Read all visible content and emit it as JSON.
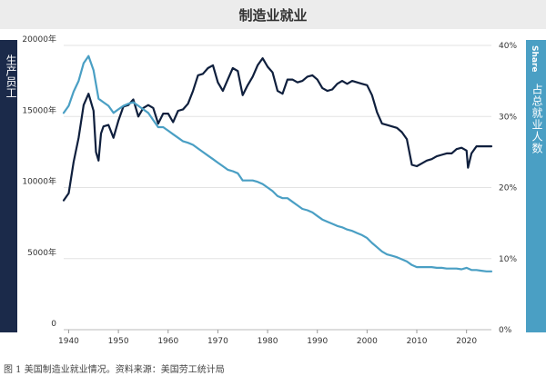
{
  "title": "制造业就业",
  "left_axis_label": "生产员工",
  "right_axis_tag": "Share",
  "right_axis_label": "占总就业人数",
  "caption": "图 1 美国制造业就业情况。资料来源：美国劳工统计局",
  "colors": {
    "employees": "#0f1f3d",
    "share": "#4a9fc4",
    "grid": "#e3e3e3",
    "tick": "#333333"
  },
  "chart_data": {
    "type": "line",
    "x_range": [
      1939,
      2025
    ],
    "x_ticks": [
      1940,
      1950,
      1960,
      1970,
      1980,
      1990,
      2000,
      2010,
      2020
    ],
    "y_left": {
      "range": [
        0,
        20000
      ],
      "ticks": [
        0,
        5000,
        10000,
        15000,
        20000
      ],
      "tick_labels": [
        "0",
        "5000年",
        "10000年",
        "15000年",
        "20000年"
      ]
    },
    "y_right": {
      "range": [
        0,
        40
      ],
      "ticks": [
        0,
        10,
        20,
        30,
        40
      ],
      "tick_labels": [
        "0%",
        "10%",
        "20%",
        "30%",
        "40%"
      ]
    },
    "grid": true,
    "series": [
      {
        "key": "employees",
        "axis": "left",
        "color": "#0f1f3d",
        "x": [
          1939,
          1940,
          1941,
          1942,
          1943,
          1944,
          1945,
          1945.5,
          1946,
          1946.5,
          1947,
          1948,
          1949,
          1950,
          1951,
          1952,
          1953,
          1954,
          1955,
          1956,
          1957,
          1958,
          1959,
          1960,
          1961,
          1962,
          1963,
          1964,
          1965,
          1966,
          1967,
          1968,
          1969,
          1970,
          1971,
          1972,
          1973,
          1974,
          1975,
          1976,
          1977,
          1978,
          1979,
          1980,
          1981,
          1982,
          1983,
          1984,
          1985,
          1986,
          1987,
          1988,
          1989,
          1990,
          1991,
          1992,
          1993,
          1994,
          1995,
          1996,
          1997,
          1998,
          1999,
          2000,
          2001,
          2002,
          2003,
          2004,
          2005,
          2006,
          2007,
          2008,
          2009,
          2010,
          2011,
          2012,
          2013,
          2014,
          2015,
          2016,
          2017,
          2018,
          2019,
          2020,
          2020.3,
          2021,
          2022,
          2023,
          2024,
          2025
        ],
        "values": [
          9100,
          9600,
          11800,
          13500,
          15800,
          16600,
          15400,
          12500,
          11900,
          13800,
          14300,
          14400,
          13500,
          14700,
          15700,
          15800,
          16200,
          15000,
          15600,
          15800,
          15600,
          14500,
          15200,
          15200,
          14600,
          15400,
          15500,
          15900,
          16800,
          17900,
          18000,
          18400,
          18600,
          17400,
          16800,
          17600,
          18400,
          18200,
          16500,
          17200,
          17800,
          18600,
          19100,
          18500,
          18100,
          16800,
          16600,
          17600,
          17600,
          17400,
          17500,
          17800,
          17900,
          17600,
          17000,
          16800,
          16900,
          17300,
          17500,
          17300,
          17500,
          17400,
          17300,
          17200,
          16500,
          15300,
          14500,
          14400,
          14300,
          14200,
          13900,
          13400,
          11600,
          11500,
          11700,
          11900,
          12000,
          12200,
          12300,
          12400,
          12400,
          12700,
          12800,
          12600,
          11400,
          12400,
          12900,
          12900,
          12900,
          12900
        ]
      },
      {
        "key": "share",
        "axis": "right",
        "color": "#4a9fc4",
        "x": [
          1939,
          1940,
          1941,
          1942,
          1943,
          1944,
          1945,
          1946,
          1947,
          1948,
          1949,
          1950,
          1951,
          1952,
          1953,
          1954,
          1955,
          1956,
          1957,
          1958,
          1959,
          1960,
          1961,
          1962,
          1963,
          1964,
          1965,
          1966,
          1967,
          1968,
          1969,
          1970,
          1971,
          1972,
          1973,
          1974,
          1975,
          1976,
          1977,
          1978,
          1979,
          1980,
          1981,
          1982,
          1983,
          1984,
          1985,
          1986,
          1987,
          1988,
          1989,
          1990,
          1991,
          1992,
          1993,
          1994,
          1995,
          1996,
          1997,
          1998,
          1999,
          2000,
          2001,
          2002,
          2003,
          2004,
          2005,
          2006,
          2007,
          2008,
          2009,
          2010,
          2011,
          2012,
          2013,
          2014,
          2015,
          2016,
          2017,
          2018,
          2019,
          2020,
          2021,
          2022,
          2023,
          2024,
          2025
        ],
        "values": [
          30.5,
          31.5,
          33.5,
          35.0,
          37.5,
          38.5,
          36.5,
          32.5,
          32.0,
          31.5,
          30.5,
          31.0,
          31.5,
          31.8,
          32.0,
          31.5,
          31.0,
          30.5,
          29.5,
          28.5,
          28.5,
          28.0,
          27.5,
          27.0,
          26.5,
          26.3,
          26.0,
          25.5,
          25.0,
          24.5,
          24.0,
          23.5,
          23.0,
          22.5,
          22.3,
          22.0,
          21.0,
          21.0,
          21.0,
          20.8,
          20.5,
          20.0,
          19.5,
          18.8,
          18.5,
          18.5,
          18.0,
          17.5,
          17.0,
          16.8,
          16.5,
          16.0,
          15.5,
          15.2,
          14.9,
          14.6,
          14.4,
          14.1,
          13.9,
          13.6,
          13.3,
          12.9,
          12.2,
          11.6,
          11.0,
          10.6,
          10.4,
          10.2,
          9.9,
          9.6,
          9.1,
          8.8,
          8.8,
          8.8,
          8.8,
          8.7,
          8.7,
          8.6,
          8.6,
          8.6,
          8.5,
          8.7,
          8.4,
          8.4,
          8.3,
          8.2,
          8.2
        ]
      }
    ]
  }
}
